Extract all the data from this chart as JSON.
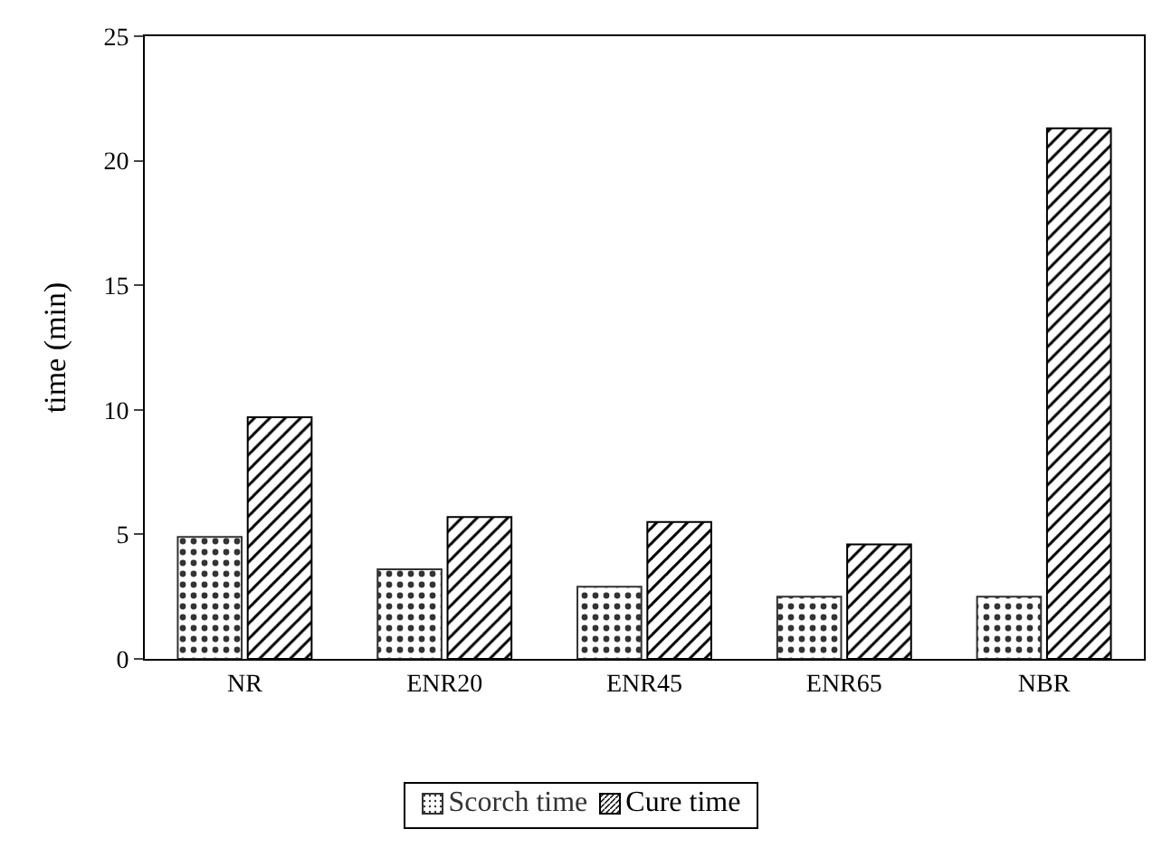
{
  "chart_data": {
    "type": "bar",
    "ylabel": "time (min)",
    "categories": [
      "NR",
      "ENR20",
      "ENR45",
      "ENR65",
      "NBR"
    ],
    "series": [
      {
        "name": "Scorch time",
        "color": "#333333",
        "values": [
          4.9,
          3.6,
          2.9,
          2.5,
          2.5
        ]
      },
      {
        "name": "Cure time",
        "color": "#000000",
        "values": [
          9.7,
          5.7,
          5.5,
          4.6,
          21.3
        ]
      }
    ],
    "ylim": [
      0,
      25
    ],
    "yticks": [
      0,
      5,
      10,
      15,
      20,
      25
    ],
    "grid": false,
    "legend": "bottom"
  }
}
